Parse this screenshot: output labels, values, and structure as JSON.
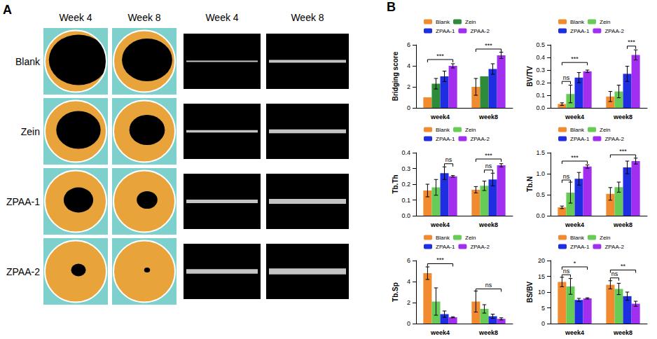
{
  "panel_labels": [
    "A",
    "B"
  ],
  "images": {
    "columns": [
      "Week 4",
      "Week 8",
      "Week 4",
      "Week 8"
    ],
    "rows": [
      "Blank",
      "Zein",
      "ZPAA-1",
      "ZPAA-2"
    ]
  },
  "chart_data": [
    {
      "type": "bar",
      "y_label": "Bridging score",
      "categories": [
        "week4",
        "week8"
      ],
      "series": [
        {
          "name": "Blank",
          "color": "#f28a30",
          "values": [
            1.0,
            2.0
          ],
          "errors": [
            0,
            0.8
          ]
        },
        {
          "name": "Zein",
          "color": "#2e8b3a",
          "values": [
            2.3,
            3.0
          ],
          "errors": [
            0.5,
            0
          ]
        },
        {
          "name": "ZPAA-1",
          "color": "#1f2ee0",
          "values": [
            3.0,
            3.7
          ],
          "errors": [
            0.5,
            0.5
          ]
        },
        {
          "name": "ZPAA-2",
          "color": "#a22ff0",
          "values": [
            4.0,
            5.0
          ],
          "errors": [
            0.2,
            0.3
          ]
        }
      ],
      "ylim": [
        0,
        6
      ],
      "yticks": [
        0,
        2,
        4,
        6
      ],
      "grid": false,
      "legend": "top",
      "annotations": [
        {
          "text": "***",
          "category": "week4",
          "from": "Blank",
          "to": "ZPAA-2",
          "y": 4.6
        },
        {
          "text": "***",
          "category": "week8",
          "from": "Blank",
          "to": "ZPAA-2",
          "y": 5.6
        }
      ]
    },
    {
      "type": "bar",
      "y_label": "BV/TV",
      "categories": [
        "week4",
        "week8"
      ],
      "series": [
        {
          "name": "Blank",
          "color": "#f28a30",
          "values": [
            0.03,
            0.09
          ],
          "errors": [
            0.01,
            0.04
          ]
        },
        {
          "name": "Zein",
          "color": "#66cc55",
          "values": [
            0.11,
            0.13
          ],
          "errors": [
            0.07,
            0.05
          ]
        },
        {
          "name": "ZPAA-1",
          "color": "#1f2ee0",
          "values": [
            0.24,
            0.27
          ],
          "errors": [
            0.04,
            0.06
          ]
        },
        {
          "name": "ZPAA-2",
          "color": "#a22ff0",
          "values": [
            0.29,
            0.42
          ],
          "errors": [
            0.01,
            0.04
          ]
        }
      ],
      "ylim": [
        0,
        0.5
      ],
      "yticks": [
        {
          "value": 0,
          "label": "0.0"
        },
        0.1,
        0.2,
        0.3,
        0.4,
        0.5
      ],
      "grid": false,
      "legend": "top",
      "annotations": [
        {
          "text": "ns",
          "category": "week4",
          "from": "Blank",
          "to": "Zein",
          "y": 0.21
        },
        {
          "text": "***",
          "category": "week4",
          "from": "Blank",
          "to": "ZPAA-2",
          "y": 0.36
        },
        {
          "text": "***",
          "category": "week8",
          "from": "ZPAA-1",
          "to": "ZPAA-2",
          "y": 0.49
        }
      ]
    },
    {
      "type": "bar",
      "y_label": "Tb.Th",
      "categories": [
        "week4",
        "week8"
      ],
      "series": [
        {
          "name": "Blank",
          "color": "#f28a30",
          "values": [
            0.16,
            0.165
          ],
          "errors": [
            0.04,
            0.02
          ]
        },
        {
          "name": "Zein",
          "color": "#66cc55",
          "values": [
            0.18,
            0.19
          ],
          "errors": [
            0.05,
            0.03
          ]
        },
        {
          "name": "ZPAA-1",
          "color": "#1f2ee0",
          "values": [
            0.27,
            0.23
          ],
          "errors": [
            0.04,
            0.04
          ]
        },
        {
          "name": "ZPAA-2",
          "color": "#a22ff0",
          "values": [
            0.25,
            0.32
          ],
          "errors": [
            0.005,
            0.01
          ]
        }
      ],
      "ylim": [
        0,
        0.4
      ],
      "yticks": [
        {
          "value": 0,
          "label": "0.0"
        },
        0.1,
        0.2,
        0.3,
        0.4
      ],
      "grid": false,
      "legend": "top",
      "annotations": [
        {
          "text": "ns",
          "category": "week4",
          "from": "ZPAA-1",
          "to": "ZPAA-2",
          "y": 0.33
        },
        {
          "text": "ns",
          "category": "week8",
          "from": "Zein",
          "to": "ZPAA-1",
          "y": 0.29
        },
        {
          "text": "***",
          "category": "week8",
          "from": "Blank",
          "to": "ZPAA-2",
          "y": 0.36
        }
      ]
    },
    {
      "type": "bar",
      "y_label": "Tb.N",
      "categories": [
        "week4",
        "week8"
      ],
      "series": [
        {
          "name": "Blank",
          "color": "#f28a30",
          "values": [
            0.2,
            0.52
          ],
          "errors": [
            0.03,
            0.15
          ]
        },
        {
          "name": "Zein",
          "color": "#66cc55",
          "values": [
            0.55,
            0.68
          ],
          "errors": [
            0.25,
            0.12
          ]
        },
        {
          "name": "ZPAA-1",
          "color": "#1f2ee0",
          "values": [
            0.88,
            1.15
          ],
          "errors": [
            0.15,
            0.15
          ]
        },
        {
          "name": "ZPAA-2",
          "color": "#a22ff0",
          "values": [
            1.17,
            1.3
          ],
          "errors": [
            0.04,
            0.07
          ]
        }
      ],
      "ylim": [
        0,
        1.5
      ],
      "yticks": [
        {
          "value": 0,
          "label": "0.0"
        },
        0.5,
        {
          "value": 1,
          "label": "1.0"
        },
        1.5
      ],
      "grid": false,
      "legend": "top",
      "annotations": [
        {
          "text": "ns",
          "category": "week4",
          "from": "Blank",
          "to": "Zein",
          "y": 0.85
        },
        {
          "text": "***",
          "category": "week4",
          "from": "Blank",
          "to": "ZPAA-2",
          "y": 1.3
        },
        {
          "text": "***",
          "category": "week8",
          "from": "Blank",
          "to": "ZPAA-2",
          "y": 1.45
        }
      ]
    },
    {
      "type": "bar",
      "y_label": "Tb.Sp",
      "categories": [
        "week4",
        "week8"
      ],
      "series": [
        {
          "name": "Blank",
          "color": "#f28a30",
          "values": [
            4.8,
            2.1
          ],
          "errors": [
            0.6,
            1.0
          ]
        },
        {
          "name": "Zein",
          "color": "#66cc55",
          "values": [
            2.1,
            1.4
          ],
          "errors": [
            1.3,
            0.4
          ]
        },
        {
          "name": "ZPAA-1",
          "color": "#1f2ee0",
          "values": [
            0.9,
            0.7
          ],
          "errors": [
            0.3,
            0.2
          ]
        },
        {
          "name": "ZPAA-2",
          "color": "#a22ff0",
          "values": [
            0.6,
            0.45
          ],
          "errors": [
            0.05,
            0.1
          ]
        }
      ],
      "ylim": [
        0,
        6
      ],
      "yticks": [
        0,
        2,
        4,
        6
      ],
      "grid": false,
      "legend": "top",
      "annotations": [
        {
          "text": "***",
          "category": "week4",
          "from": "Blank",
          "to": "ZPAA-2",
          "y": 5.7
        },
        {
          "text": "ns",
          "category": "week8",
          "from": "Blank",
          "to": "ZPAA-2",
          "y": 3.3
        }
      ]
    },
    {
      "type": "bar",
      "y_label": "BS/BV",
      "categories": [
        "week4",
        "week8"
      ],
      "series": [
        {
          "name": "Blank",
          "color": "#f28a30",
          "values": [
            13.2,
            12.3
          ],
          "errors": [
            1.5,
            1.3
          ]
        },
        {
          "name": "Zein",
          "color": "#66cc55",
          "values": [
            11.8,
            11.0
          ],
          "errors": [
            2.5,
            1.8
          ]
        },
        {
          "name": "ZPAA-1",
          "color": "#1f2ee0",
          "values": [
            7.5,
            8.7
          ],
          "errors": [
            0.5,
            1.3
          ]
        },
        {
          "name": "ZPAA-2",
          "color": "#a22ff0",
          "values": [
            8.0,
            6.3
          ],
          "errors": [
            0.2,
            0.8
          ]
        }
      ],
      "ylim": [
        0,
        20
      ],
      "yticks": [
        0,
        5,
        10,
        15,
        20
      ],
      "grid": false,
      "legend": "top",
      "annotations": [
        {
          "text": "ns",
          "category": "week4",
          "from": "Blank",
          "to": "Zein",
          "y": 15.5
        },
        {
          "text": "*",
          "category": "week4",
          "from": "Blank",
          "to": "ZPAA-2",
          "y": 18
        },
        {
          "text": "ns",
          "category": "week8",
          "from": "Blank",
          "to": "Zein",
          "y": 14.5
        },
        {
          "text": "**",
          "category": "week8",
          "from": "Blank",
          "to": "ZPAA-2",
          "y": 17
        }
      ]
    }
  ]
}
